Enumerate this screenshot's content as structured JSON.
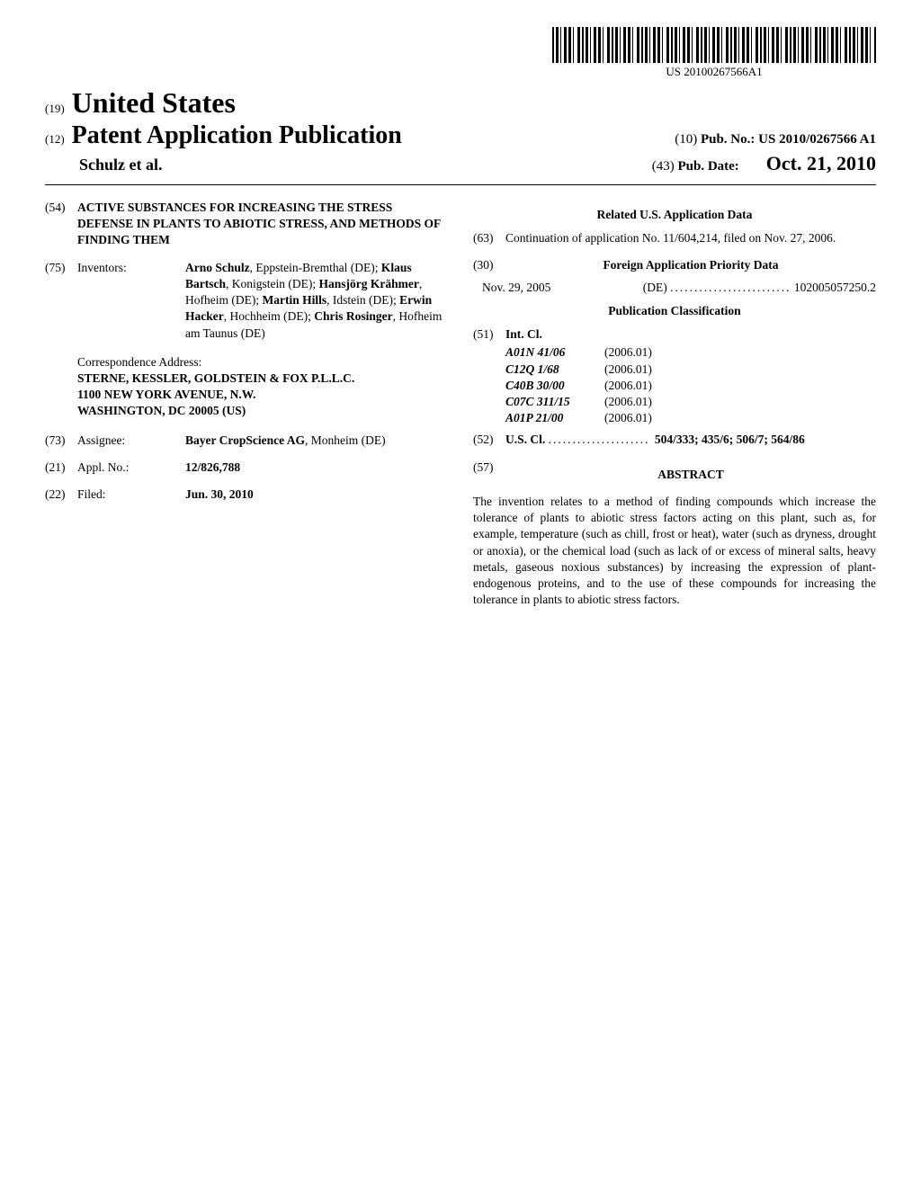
{
  "barcode_label": "US 20100267566A1",
  "header": {
    "tag19": "(19)",
    "country": "United States",
    "tag12": "(12)",
    "pub_type": "Patent Application Publication",
    "authors_line": "Schulz et al.",
    "tag10": "(10)",
    "pubno_label": "Pub. No.:",
    "pubno": "US 2010/0267566 A1",
    "tag43": "(43)",
    "pubdate_label": "Pub. Date:",
    "pubdate": "Oct. 21, 2010"
  },
  "left": {
    "f54": {
      "num": "(54)",
      "title": "ACTIVE SUBSTANCES FOR INCREASING THE STRESS DEFENSE IN PLANTS TO ABIOTIC STRESS, AND METHODS OF FINDING THEM"
    },
    "f75": {
      "num": "(75)",
      "label": "Inventors:",
      "value_html": "<b>Arno Schulz</b>, Eppstein-Bremthal (DE); <b>Klaus Bartsch</b>, Konigstein (DE); <b>Hansjörg Krähmer</b>, Hofheim (DE); <b>Martin Hills</b>, Idstein (DE); <b>Erwin Hacker</b>, Hochheim (DE); <b>Chris Rosinger</b>, Hofheim am Taunus (DE)"
    },
    "corr": {
      "label": "Correspondence Address:",
      "l1": "STERNE, KESSLER, GOLDSTEIN & FOX P.L.L.C.",
      "l2": "1100 NEW YORK AVENUE, N.W.",
      "l3": "WASHINGTON, DC 20005 (US)"
    },
    "f73": {
      "num": "(73)",
      "label": "Assignee:",
      "value_html": "<b>Bayer CropScience AG</b>, Monheim (DE)"
    },
    "f21": {
      "num": "(21)",
      "label": "Appl. No.:",
      "value": "12/826,788"
    },
    "f22": {
      "num": "(22)",
      "label": "Filed:",
      "value": "Jun. 30, 2010"
    }
  },
  "right": {
    "related_title": "Related U.S. Application Data",
    "f63": {
      "num": "(63)",
      "text": "Continuation of application No. 11/604,214, filed on Nov. 27, 2006."
    },
    "f30": {
      "num": "(30)",
      "title": "Foreign Application Priority Data"
    },
    "priority": {
      "date": "Nov. 29, 2005",
      "cc": "(DE)",
      "appno": "102005057250.2"
    },
    "pubclass_title": "Publication Classification",
    "f51": {
      "num": "(51)",
      "label": "Int. Cl.",
      "rows": [
        {
          "code": "A01N 41/06",
          "year": "(2006.01)"
        },
        {
          "code": "C12Q 1/68",
          "year": "(2006.01)"
        },
        {
          "code": "C40B 30/00",
          "year": "(2006.01)"
        },
        {
          "code": "C07C 311/15",
          "year": "(2006.01)"
        },
        {
          "code": "A01P 21/00",
          "year": "(2006.01)"
        }
      ]
    },
    "f52": {
      "num": "(52)",
      "label": "U.S. Cl.",
      "value": "504/333; 435/6; 506/7; 564/86"
    },
    "f57": {
      "num": "(57)",
      "title": "ABSTRACT"
    },
    "abstract": "The invention relates to a method of finding compounds which increase the tolerance of plants to abiotic stress factors acting on this plant, such as, for example, temperature (such as chill, frost or heat), water (such as dryness, drought or anoxia), or the chemical load (such as lack of or excess of mineral salts, heavy metals, gaseous noxious substances) by increasing the expression of plant-endogenous proteins, and to the use of these compounds for increasing the tolerance in plants to abiotic stress factors."
  }
}
